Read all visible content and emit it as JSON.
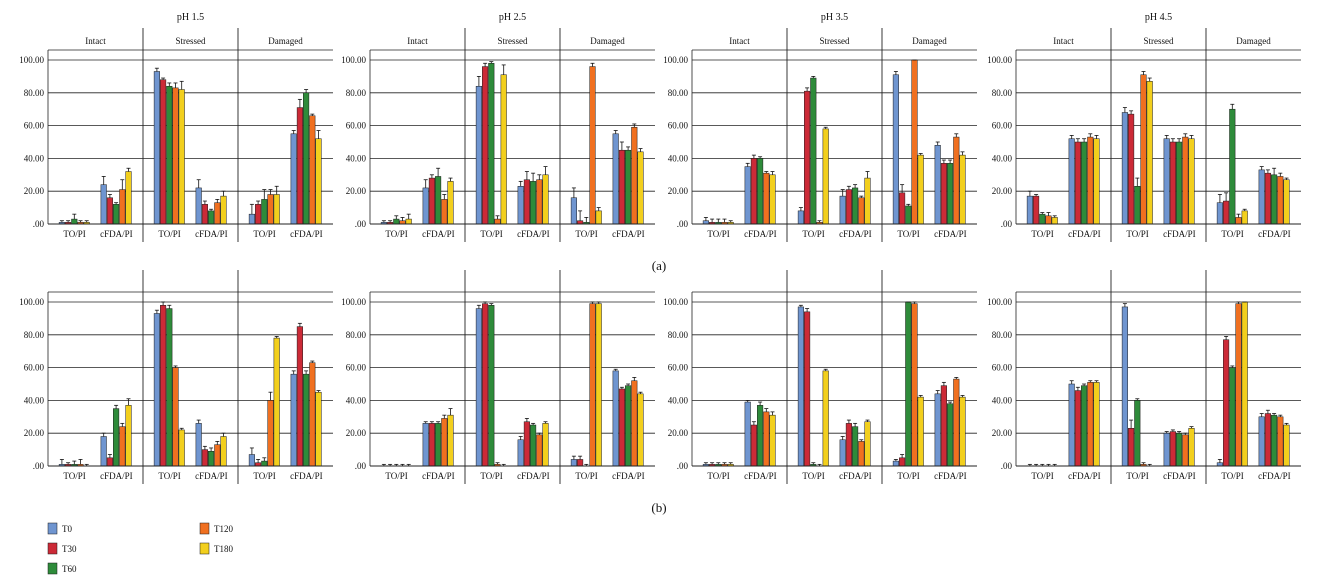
{
  "figure": {
    "panel_labels": [
      "(a)",
      "(b)"
    ],
    "tick_labels": [
      ".00",
      "20.00",
      "40.00",
      "60.00",
      "80.00",
      "100.00"
    ],
    "ylim": [
      0,
      100
    ],
    "group_labels": [
      "Intact",
      "Stressed",
      "Damaged"
    ],
    "stain_labels": [
      "TO/PI",
      "cFDA/PI"
    ],
    "legend": [
      {
        "name": "T0",
        "color": "#6f95d0"
      },
      {
        "name": "T30",
        "color": "#cc2a37"
      },
      {
        "name": "T60",
        "color": "#2e8b3a"
      },
      {
        "name": "T120",
        "color": "#f07020"
      },
      {
        "name": "T180",
        "color": "#f2cf1d"
      }
    ]
  },
  "chart_data": [
    {
      "type": "bar",
      "row": "(a)",
      "title": "pH 1.5",
      "series_order": [
        "T0",
        "T30",
        "T60",
        "T120",
        "T180"
      ],
      "values": [
        [
          [
            1,
            1,
            3,
            1,
            1
          ],
          [
            24,
            16,
            12,
            21,
            32
          ]
        ],
        [
          [
            93,
            88,
            84,
            83,
            82
          ],
          [
            22,
            12,
            8,
            13,
            17
          ]
        ],
        [
          [
            6,
            12,
            15,
            18,
            18
          ],
          [
            55,
            71,
            80,
            66,
            52
          ]
        ]
      ],
      "errors": [
        [
          [
            1,
            1,
            3,
            1,
            1
          ],
          [
            5,
            2,
            1,
            6,
            2
          ]
        ],
        [
          [
            2,
            1,
            2,
            3,
            5
          ],
          [
            5,
            2,
            1,
            2,
            3
          ]
        ],
        [
          [
            6,
            2,
            6,
            3,
            5
          ],
          [
            2,
            5,
            2,
            1,
            5
          ]
        ]
      ]
    },
    {
      "type": "bar",
      "row": "(a)",
      "title": "pH 2.5",
      "series_order": [
        "T0",
        "T30",
        "T60",
        "T120",
        "T180"
      ],
      "values": [
        [
          [
            1,
            1,
            3,
            2,
            3
          ],
          [
            22,
            28,
            29,
            15,
            26
          ]
        ],
        [
          [
            84,
            96,
            98,
            3,
            91
          ]
        ],
        [
          [
            16,
            2,
            1,
            96,
            8
          ]
        ]
      ],
      "errors": [
        [
          [
            1,
            1,
            2,
            2,
            3
          ],
          [
            5,
            2,
            5,
            3,
            2
          ]
        ],
        [
          [
            6,
            2,
            1,
            2,
            6
          ]
        ],
        [
          [
            6,
            6,
            3,
            2,
            2
          ]
        ]
      ],
      "values_extra": [
        [
          23,
          27,
          26,
          27,
          30
        ],
        [
          55,
          45,
          45,
          59,
          44
        ]
      ],
      "errors_extra": [
        [
          3,
          5,
          5,
          3,
          5
        ],
        [
          2,
          5,
          2,
          2,
          2
        ]
      ]
    },
    {
      "type": "bar",
      "row": "(a)",
      "title": "pH 3.5",
      "series_order": [
        "T0",
        "T30",
        "T60",
        "T120",
        "T180"
      ],
      "values": [
        [
          [
            2,
            1,
            1,
            1,
            1
          ],
          [
            35,
            40,
            40,
            31,
            30
          ]
        ],
        [
          [
            8,
            81,
            89,
            1,
            58
          ]
        ],
        [
          [
            91,
            19,
            11,
            100,
            42
          ]
        ]
      ],
      "errors": [
        [
          [
            2,
            2,
            2,
            2,
            1
          ],
          [
            2,
            2,
            1,
            1,
            2
          ]
        ],
        [
          [
            2,
            2,
            1,
            1,
            1
          ]
        ],
        [
          [
            2,
            5,
            1,
            1,
            1
          ]
        ]
      ],
      "values_extra": [
        [
          17,
          21,
          22,
          16,
          28
        ],
        [
          48,
          37,
          37,
          53,
          42
        ]
      ],
      "errors_extra": [
        [
          4,
          2,
          2,
          1,
          4
        ],
        [
          2,
          2,
          2,
          2,
          2
        ]
      ]
    },
    {
      "type": "bar",
      "row": "(a)",
      "title": "pH 4.5",
      "series_order": [
        "T0",
        "T30",
        "T60",
        "T120",
        "T180"
      ],
      "values": [
        [
          [
            17,
            17,
            6,
            5,
            4
          ],
          [
            52,
            50,
            50,
            53,
            52
          ]
        ],
        [
          [
            68,
            67,
            23,
            91,
            87
          ]
        ],
        [
          [
            13,
            14,
            70,
            4,
            8
          ]
        ]
      ],
      "errors": [
        [
          [
            3,
            1,
            1,
            2,
            1
          ],
          [
            2,
            2,
            2,
            2,
            2
          ]
        ],
        [
          [
            3,
            2,
            5,
            2,
            2
          ]
        ],
        [
          [
            5,
            5,
            3,
            2,
            1
          ]
        ]
      ],
      "values_extra": [
        [
          52,
          50,
          50,
          53,
          52
        ],
        [
          33,
          31,
          30,
          29,
          27
        ]
      ],
      "errors_extra": [
        [
          2,
          2,
          2,
          2,
          2
        ],
        [
          2,
          2,
          4,
          2,
          1
        ]
      ]
    },
    {
      "type": "bar",
      "row": "(b)",
      "title": "",
      "series_order": [
        "T0",
        "T30",
        "T60",
        "T120",
        "T180"
      ],
      "values": [
        [
          [
            1,
            1,
            1,
            1,
            0
          ],
          [
            18,
            5,
            35,
            24,
            37
          ]
        ],
        [
          [
            93,
            98,
            96,
            60,
            22
          ]
        ],
        [
          [
            7,
            2,
            3,
            40,
            78
          ]
        ]
      ],
      "errors": [
        [
          [
            3,
            1,
            2,
            3,
            1
          ],
          [
            2,
            2,
            2,
            2,
            4
          ]
        ],
        [
          [
            2,
            2,
            2,
            1,
            1
          ]
        ],
        [
          [
            4,
            2,
            2,
            5,
            1
          ]
        ]
      ],
      "values_extra": [
        [
          26,
          10,
          9,
          13,
          18
        ],
        [
          56,
          85,
          56,
          63,
          45
        ]
      ],
      "errors_extra": [
        [
          2,
          2,
          2,
          2,
          2
        ],
        [
          2,
          2,
          2,
          1,
          1
        ]
      ]
    },
    {
      "type": "bar",
      "row": "(b)",
      "title": "",
      "series_order": [
        "T0",
        "T30",
        "T60",
        "T120",
        "T180"
      ],
      "values": [
        [
          [
            0,
            0,
            0,
            0,
            0
          ],
          [
            26,
            26,
            26,
            29,
            31
          ]
        ],
        [
          [
            96,
            99,
            98,
            1,
            0
          ]
        ],
        [
          [
            4,
            4,
            0,
            99,
            99
          ]
        ]
      ],
      "errors": [
        [
          [
            1,
            1,
            1,
            1,
            1
          ],
          [
            1,
            1,
            1,
            2,
            4
          ]
        ],
        [
          [
            2,
            1,
            1,
            1,
            1
          ]
        ],
        [
          [
            2,
            2,
            1,
            1,
            1
          ]
        ]
      ],
      "values_extra": [
        [
          16,
          27,
          25,
          19,
          26
        ],
        [
          58,
          47,
          49,
          52,
          44
        ]
      ],
      "errors_extra": [
        [
          2,
          2,
          1,
          1,
          1
        ],
        [
          1,
          1,
          1,
          2,
          1
        ]
      ]
    },
    {
      "type": "bar",
      "row": "(b)",
      "title": "",
      "series_order": [
        "T0",
        "T30",
        "T60",
        "T120",
        "T180"
      ],
      "values": [
        [
          [
            1,
            1,
            1,
            1,
            1
          ],
          [
            39,
            25,
            37,
            33,
            31
          ]
        ],
        [
          [
            97,
            94,
            1,
            0,
            58
          ]
        ],
        [
          [
            3,
            5,
            100,
            99,
            42
          ]
        ]
      ],
      "errors": [
        [
          [
            1,
            1,
            1,
            1,
            1
          ],
          [
            1,
            2,
            2,
            2,
            2
          ]
        ],
        [
          [
            1,
            2,
            1,
            1,
            1
          ]
        ],
        [
          [
            1,
            2,
            1,
            1,
            1
          ]
        ]
      ],
      "values_extra": [
        [
          16,
          26,
          24,
          15,
          27
        ],
        [
          44,
          49,
          38,
          53,
          42
        ]
      ],
      "errors_extra": [
        [
          2,
          2,
          2,
          1,
          1
        ],
        [
          2,
          2,
          1,
          1,
          1
        ]
      ]
    },
    {
      "type": "bar",
      "row": "(b)",
      "title": "",
      "series_order": [
        "T0",
        "T30",
        "T60",
        "T120",
        "T180"
      ],
      "values": [
        [
          [
            0,
            0,
            0,
            0,
            0
          ],
          [
            50,
            46,
            49,
            51,
            51
          ]
        ],
        [
          [
            97,
            23,
            40,
            1,
            0
          ]
        ],
        [
          [
            2,
            77,
            60,
            99,
            100
          ]
        ]
      ],
      "errors": [
        [
          [
            1,
            1,
            1,
            1,
            1
          ],
          [
            2,
            2,
            1,
            1,
            1
          ]
        ],
        [
          [
            2,
            5,
            1,
            1,
            1
          ]
        ],
        [
          [
            2,
            2,
            1,
            1,
            1
          ]
        ]
      ],
      "values_extra": [
        [
          20,
          21,
          20,
          19,
          23
        ],
        [
          30,
          32,
          31,
          30,
          25
        ]
      ],
      "errors_extra": [
        [
          1,
          1,
          1,
          1,
          1
        ],
        [
          2,
          2,
          1,
          1,
          1
        ]
      ]
    }
  ]
}
